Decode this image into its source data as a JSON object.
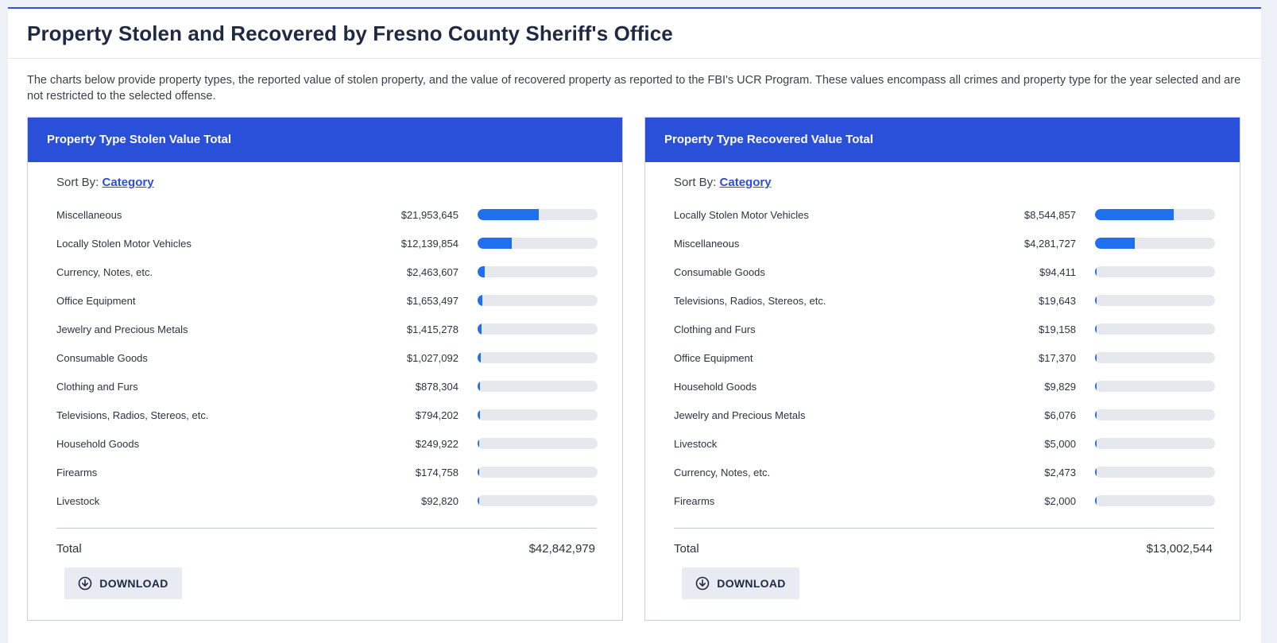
{
  "page": {
    "title": "Property Stolen and Recovered by Fresno County Sheriff's Office",
    "description": "The charts below provide property types, the reported value of stolen property, and the value of recovered property as reported to the FBI's UCR Program. These values encompass all crimes and property type for the year selected and are not restricted to the selected offense."
  },
  "colors": {
    "header": "#2a4fd8",
    "bar": "#1f6fef",
    "track": "#e6e8ee"
  },
  "icons": {
    "download": "download-circle-icon"
  },
  "panels": [
    {
      "title": "Property Type Stolen Value Total",
      "sort_prefix": "Sort By:",
      "sort_link": "Category",
      "total_label": "Total",
      "total_value": "$42,842,979",
      "download_label": "DOWNLOAD"
    },
    {
      "title": "Property Type Recovered Value Total",
      "sort_prefix": "Sort By:",
      "sort_link": "Category",
      "total_label": "Total",
      "total_value": "$13,002,544",
      "download_label": "DOWNLOAD"
    }
  ],
  "chart_data": [
    {
      "type": "bar",
      "orientation": "horizontal",
      "title": "Property Type Stolen Value Total",
      "categories": [
        "Miscellaneous",
        "Locally Stolen Motor Vehicles",
        "Currency, Notes, etc.",
        "Office Equipment",
        "Jewelry and Precious Metals",
        "Consumable Goods",
        "Clothing and Furs",
        "Televisions, Radios, Stereos, etc.",
        "Household Goods",
        "Firearms",
        "Livestock"
      ],
      "values": [
        21953645,
        12139854,
        2463607,
        1653497,
        1415278,
        1027092,
        878304,
        794202,
        249922,
        174758,
        92820
      ],
      "value_labels": [
        "$21,953,645",
        "$12,139,854",
        "$2,463,607",
        "$1,653,497",
        "$1,415,278",
        "$1,027,092",
        "$878,304",
        "$794,202",
        "$249,922",
        "$174,758",
        "$92,820"
      ],
      "total": 42842979
    },
    {
      "type": "bar",
      "orientation": "horizontal",
      "title": "Property Type Recovered Value Total",
      "categories": [
        "Locally Stolen Motor Vehicles",
        "Miscellaneous",
        "Consumable Goods",
        "Televisions, Radios, Stereos, etc.",
        "Clothing and Furs",
        "Office Equipment",
        "Household Goods",
        "Jewelry and Precious Metals",
        "Livestock",
        "Currency, Notes, etc.",
        "Firearms"
      ],
      "values": [
        8544857,
        4281727,
        94411,
        19643,
        19158,
        17370,
        9829,
        6076,
        5000,
        2473,
        2000
      ],
      "value_labels": [
        "$8,544,857",
        "$4,281,727",
        "$94,411",
        "$19,643",
        "$19,158",
        "$17,370",
        "$9,829",
        "$6,076",
        "$5,000",
        "$2,473",
        "$2,000"
      ],
      "total": 13002544
    }
  ]
}
